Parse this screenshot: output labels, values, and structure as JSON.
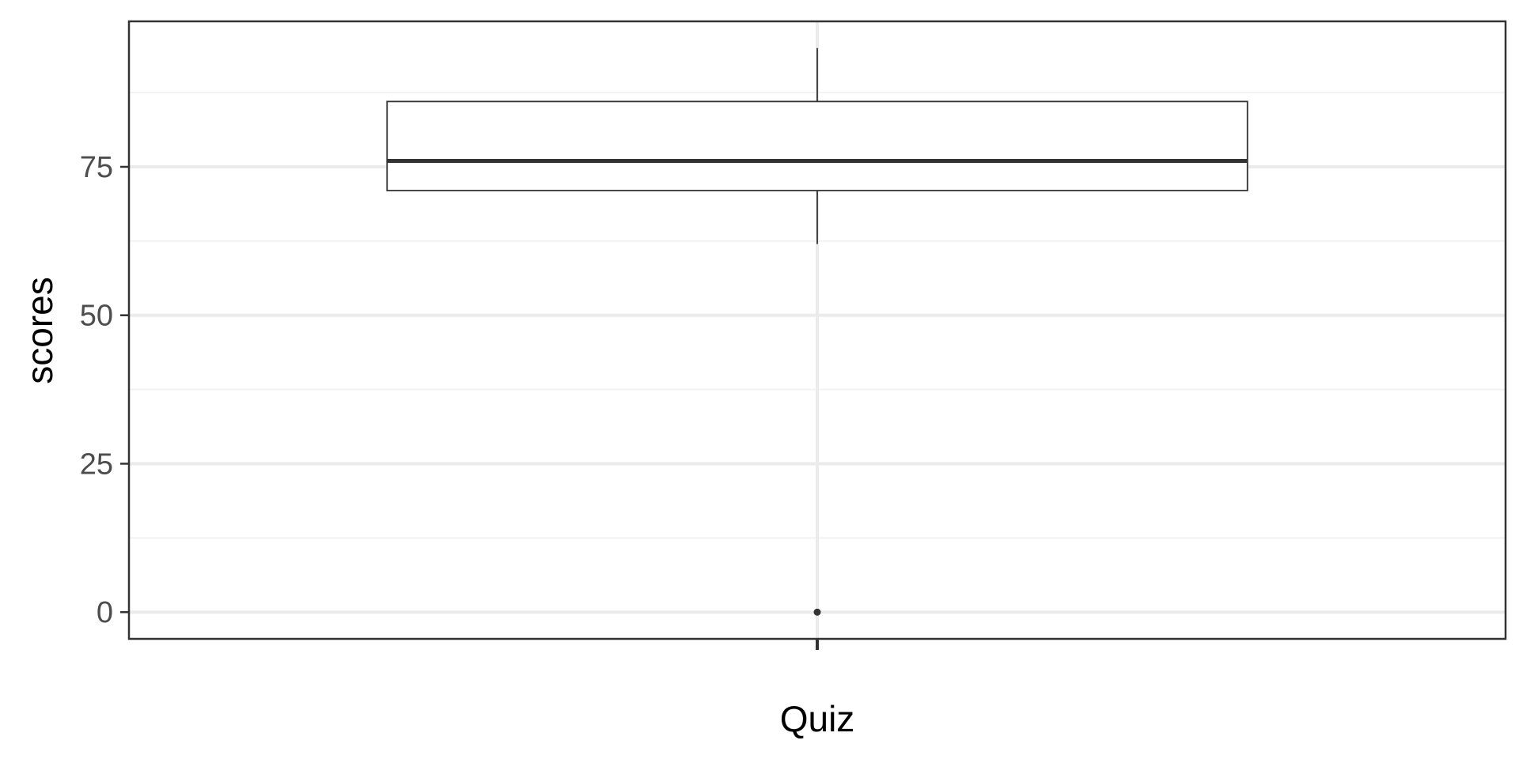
{
  "chart_data": {
    "type": "boxplot",
    "title": "",
    "xlabel": "Quiz",
    "ylabel": "scores",
    "categories": [
      "Quiz"
    ],
    "ylim": [
      -4.5,
      99.5
    ],
    "yticks": [
      0,
      25,
      50,
      75
    ],
    "ytick_labels": [
      "0",
      "25",
      "50",
      "75"
    ],
    "grid": true,
    "legend": "none",
    "boxes": [
      {
        "category": "Quiz",
        "whisker_low": 62,
        "q1": 71,
        "median": 76,
        "q3": 86,
        "whisker_high": 95,
        "outliers": [
          0
        ]
      }
    ]
  },
  "colors": {
    "background": "#ffffff",
    "panel_border": "#333333",
    "grid_major": "#ebebeb",
    "grid_minor": "#f2f2f2",
    "box_fill": "#ffffff",
    "box_stroke": "#333333",
    "tick_text": "#4d4d4d",
    "title_text": "#000000"
  }
}
